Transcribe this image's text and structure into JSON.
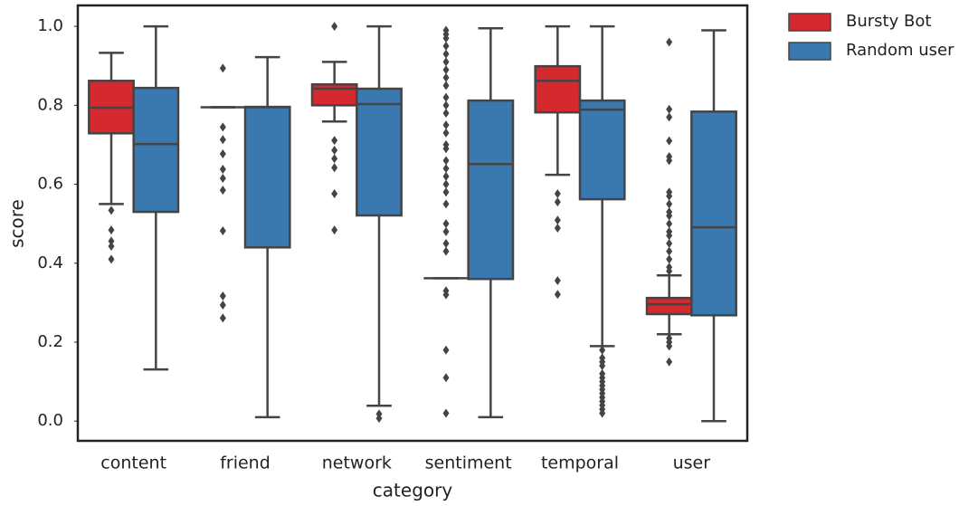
{
  "chart_data": {
    "type": "box",
    "x_label": "category",
    "y_label": "score",
    "categories": [
      "content",
      "friend",
      "network",
      "sentiment",
      "temporal",
      "user"
    ],
    "ylim": [
      -0.05,
      1.053
    ],
    "yticks": [
      {
        "value": 0,
        "label": "0.0"
      },
      0.2,
      0.4,
      0.6,
      0.8,
      {
        "value": 1,
        "label": "1.0"
      }
    ],
    "grid": false,
    "legend": "outside-upper-right",
    "series": [
      {
        "name": "Bursty Bot",
        "color": "#d42a2f",
        "boxes": [
          {
            "whislo": 0.55,
            "q1": 0.729,
            "med": 0.794,
            "q3": 0.862,
            "whishi": 0.933,
            "fliers": [
              0.534,
              0.484,
              0.456,
              0.443,
              0.41
            ]
          },
          {
            "whislo": 0.795,
            "q1": 0.795,
            "med": 0.795,
            "q3": 0.795,
            "whishi": 0.795,
            "fliers": [
              0.894,
              0.745,
              0.713,
              0.677,
              0.638,
              0.615,
              0.585,
              0.482,
              0.317,
              0.294,
              0.261
            ]
          },
          {
            "whislo": 0.759,
            "q1": 0.8,
            "med": 0.842,
            "q3": 0.853,
            "whishi": 0.91,
            "fliers": [
              1.0,
              0.711,
              0.686,
              0.665,
              0.642,
              0.576,
              0.484
            ]
          },
          {
            "whislo": 0.362,
            "q1": 0.362,
            "med": 0.362,
            "q3": 0.362,
            "whishi": 0.362,
            "fliers": [
              0.99,
              0.98,
              0.97,
              0.95,
              0.93,
              0.91,
              0.89,
              0.87,
              0.85,
              0.82,
              0.8,
              0.78,
              0.75,
              0.73,
              0.7,
              0.69,
              0.66,
              0.64,
              0.62,
              0.6,
              0.58,
              0.55,
              0.5,
              0.48,
              0.45,
              0.43,
              0.33,
              0.32,
              0.18,
              0.11,
              0.02
            ]
          },
          {
            "whislo": 0.624,
            "q1": 0.782,
            "med": 0.862,
            "q3": 0.899,
            "whishi": 1.0,
            "fliers": [
              0.576,
              0.555,
              0.509,
              0.489,
              0.356,
              0.321
            ]
          },
          {
            "whislo": 0.22,
            "q1": 0.271,
            "med": 0.296,
            "q3": 0.312,
            "whishi": 0.369,
            "fliers": [
              0.96,
              0.79,
              0.77,
              0.71,
              0.67,
              0.66,
              0.58,
              0.57,
              0.55,
              0.53,
              0.52,
              0.5,
              0.48,
              0.47,
              0.45,
              0.43,
              0.41,
              0.39,
              0.38,
              0.21,
              0.2,
              0.19,
              0.15
            ]
          }
        ]
      },
      {
        "name": "Random user",
        "color": "#3a78b0",
        "boxes": [
          {
            "whislo": 0.131,
            "q1": 0.53,
            "med": 0.702,
            "q3": 0.844,
            "whishi": 1.0,
            "fliers": []
          },
          {
            "whislo": 0.01,
            "q1": 0.44,
            "med": 0.795,
            "q3": 0.796,
            "whishi": 0.922,
            "fliers": []
          },
          {
            "whislo": 0.039,
            "q1": 0.521,
            "med": 0.803,
            "q3": 0.842,
            "whishi": 1.0,
            "fliers": [
              0.018,
              0.007
            ]
          },
          {
            "whislo": 0.01,
            "q1": 0.36,
            "med": 0.651,
            "q3": 0.812,
            "whishi": 0.995,
            "fliers": []
          },
          {
            "whislo": 0.19,
            "q1": 0.562,
            "med": 0.789,
            "q3": 0.812,
            "whishi": 1.0,
            "fliers": [
              0.18,
              0.16,
              0.15,
              0.14,
              0.12,
              0.11,
              0.1,
              0.09,
              0.08,
              0.07,
              0.06,
              0.05,
              0.04,
              0.03,
              0.02
            ]
          },
          {
            "whislo": 0.0,
            "q1": 0.268,
            "med": 0.491,
            "q3": 0.784,
            "whishi": 0.99,
            "fliers": []
          }
        ]
      }
    ]
  }
}
